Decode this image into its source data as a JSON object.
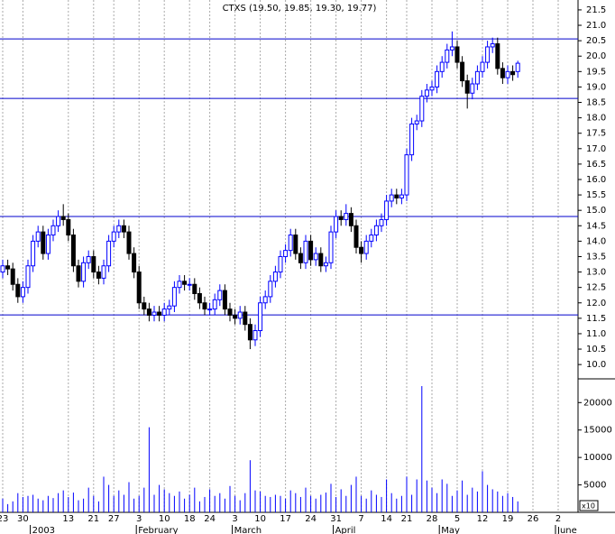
{
  "chart_data": [
    {
      "type": "candlestick",
      "title": "CTXS (19.50, 19.85, 19.30, 19.77)",
      "categories": [
        "23",
        null,
        null,
        null,
        "30",
        null,
        null,
        null,
        null,
        null,
        null,
        null,
        null,
        "13",
        null,
        null,
        null,
        null,
        "21",
        null,
        null,
        null,
        "27",
        null,
        null,
        null,
        null,
        "3",
        null,
        null,
        null,
        null,
        "10",
        null,
        null,
        null,
        null,
        "18",
        null,
        null,
        null,
        "24",
        null,
        null,
        null,
        null,
        "3",
        null,
        null,
        null,
        null,
        "10",
        null,
        null,
        null,
        null,
        "17",
        null,
        null,
        null,
        null,
        "24",
        null,
        null,
        null,
        null,
        "31",
        null,
        null,
        null,
        null,
        "7",
        null,
        null,
        null,
        null,
        "14",
        null,
        null,
        null,
        "21",
        null,
        null,
        null,
        null,
        "28",
        null,
        null,
        null,
        null,
        "5",
        null,
        null,
        null,
        null,
        "12",
        null,
        null,
        null,
        null,
        "19",
        null,
        null,
        null,
        null,
        "26",
        null,
        null,
        null,
        null,
        "2"
      ],
      "months": [
        "2003",
        "February",
        "March",
        "April",
        "May",
        "June"
      ],
      "open": [
        13.0,
        13.2,
        13.1,
        12.6,
        12.2,
        12.5,
        13.2,
        14.0,
        14.3,
        13.6,
        14.2,
        14.5,
        14.8,
        14.7,
        14.2,
        13.2,
        12.7,
        13.3,
        13.5,
        13.0,
        12.8,
        13.2,
        14.0,
        14.3,
        14.5,
        14.3,
        13.6,
        13.0,
        12.0,
        11.8,
        11.6,
        11.7,
        11.6,
        11.8,
        11.9,
        12.5,
        12.7,
        12.6,
        12.6,
        12.3,
        12.0,
        11.8,
        11.8,
        12.1,
        12.4,
        11.8,
        11.6,
        11.5,
        11.7,
        11.3,
        10.8,
        11.1,
        12.0,
        12.2,
        12.7,
        13.0,
        13.5,
        13.7,
        14.2,
        13.6,
        13.3,
        14.0,
        13.4,
        13.6,
        13.2,
        13.3,
        14.3,
        14.8,
        14.7,
        14.9,
        14.5,
        13.8,
        13.6,
        14.0,
        14.2,
        14.5,
        14.7,
        15.3,
        15.5,
        15.4,
        15.5,
        16.8,
        17.8,
        17.9,
        18.7,
        18.9,
        19.0,
        19.5,
        19.8,
        20.2,
        20.3,
        19.8,
        19.2,
        18.8,
        19.1,
        19.5,
        19.8,
        20.3,
        20.4,
        19.6,
        19.3,
        19.5,
        19.5,
        null,
        null,
        null,
        null,
        null,
        null,
        null,
        null
      ],
      "high": [
        13.4,
        13.4,
        13.3,
        12.8,
        12.7,
        13.4,
        14.2,
        14.5,
        14.5,
        14.4,
        14.7,
        15.0,
        15.2,
        14.9,
        14.4,
        13.4,
        13.5,
        13.7,
        13.7,
        13.2,
        13.4,
        14.2,
        14.5,
        14.7,
        14.7,
        14.5,
        13.8,
        13.2,
        12.2,
        12.0,
        11.9,
        11.9,
        12.0,
        12.1,
        12.7,
        12.9,
        12.9,
        12.8,
        12.8,
        12.5,
        12.2,
        12.0,
        12.3,
        12.6,
        12.6,
        12.0,
        11.8,
        11.9,
        11.9,
        11.5,
        11.3,
        12.2,
        12.4,
        12.9,
        13.2,
        13.7,
        13.9,
        14.4,
        14.4,
        13.8,
        14.2,
        14.2,
        13.8,
        13.8,
        13.5,
        14.5,
        15.0,
        15.0,
        15.2,
        15.1,
        14.7,
        14.0,
        14.2,
        14.4,
        14.7,
        14.9,
        15.5,
        15.7,
        15.7,
        15.7,
        17.0,
        18.0,
        18.1,
        18.9,
        19.1,
        19.2,
        19.7,
        20.0,
        20.4,
        20.8,
        20.5,
        20.0,
        19.4,
        19.3,
        19.7,
        20.0,
        20.5,
        20.6,
        20.6,
        19.8,
        19.7,
        19.7,
        19.85,
        null,
        null,
        null,
        null,
        null,
        null,
        null,
        null
      ],
      "low": [
        12.8,
        12.9,
        12.4,
        12.0,
        12.0,
        12.3,
        13.0,
        13.8,
        13.4,
        13.4,
        14.0,
        14.3,
        14.5,
        14.0,
        13.0,
        12.5,
        12.5,
        13.1,
        12.8,
        12.6,
        12.6,
        13.0,
        13.8,
        14.1,
        14.1,
        13.4,
        12.8,
        11.8,
        11.6,
        11.4,
        11.4,
        11.4,
        11.4,
        11.6,
        11.7,
        12.3,
        12.4,
        12.4,
        12.1,
        11.8,
        11.6,
        11.6,
        11.6,
        11.9,
        11.6,
        11.4,
        11.3,
        11.3,
        11.1,
        10.5,
        10.6,
        10.9,
        11.8,
        12.0,
        12.5,
        12.8,
        13.3,
        13.5,
        13.4,
        13.1,
        13.1,
        13.2,
        13.2,
        13.0,
        13.0,
        13.1,
        14.1,
        14.5,
        14.5,
        14.3,
        13.6,
        13.3,
        13.4,
        13.8,
        14.0,
        14.3,
        14.5,
        15.1,
        15.2,
        15.2,
        15.3,
        16.6,
        17.6,
        17.7,
        18.5,
        18.7,
        18.8,
        19.3,
        19.6,
        20.0,
        19.6,
        19.0,
        18.3,
        18.6,
        18.9,
        19.3,
        19.6,
        20.1,
        19.4,
        19.1,
        19.1,
        19.2,
        19.3,
        null,
        null,
        null,
        null,
        null,
        null,
        null,
        null
      ],
      "close": [
        13.2,
        13.1,
        12.6,
        12.2,
        12.5,
        13.2,
        14.0,
        14.3,
        13.6,
        14.2,
        14.5,
        14.8,
        14.7,
        14.2,
        13.2,
        12.7,
        13.3,
        13.5,
        13.0,
        12.8,
        13.2,
        14.0,
        14.3,
        14.5,
        14.3,
        13.6,
        13.0,
        12.0,
        11.8,
        11.6,
        11.7,
        11.6,
        11.8,
        11.9,
        12.5,
        12.7,
        12.6,
        12.6,
        12.3,
        12.0,
        11.8,
        11.8,
        12.1,
        12.4,
        11.8,
        11.6,
        11.5,
        11.7,
        11.3,
        10.8,
        11.1,
        12.0,
        12.2,
        12.7,
        13.0,
        13.5,
        13.7,
        14.2,
        13.6,
        13.3,
        14.0,
        13.4,
        13.6,
        13.2,
        13.3,
        14.3,
        14.8,
        14.7,
        14.9,
        14.5,
        13.8,
        13.6,
        14.0,
        14.2,
        14.5,
        14.7,
        15.3,
        15.5,
        15.4,
        15.5,
        16.8,
        17.8,
        17.9,
        18.7,
        18.9,
        19.0,
        19.5,
        19.8,
        20.2,
        20.3,
        19.8,
        19.2,
        18.8,
        19.1,
        19.5,
        19.8,
        20.3,
        20.4,
        19.6,
        19.3,
        19.5,
        19.4,
        19.77,
        null,
        null,
        null,
        null,
        null,
        null,
        null,
        null
      ],
      "up_color": "#0000ff",
      "down_color": "#000000",
      "ylim": [
        9.77,
        21.82
      ],
      "yticks": [
        {
          "value": 10,
          "label": "10.0"
        },
        10.5,
        {
          "value": 11,
          "label": "11.0"
        },
        11.5,
        {
          "value": 12,
          "label": "12.0"
        },
        12.5,
        {
          "value": 13,
          "label": "13.0"
        },
        13.5,
        {
          "value": 14,
          "label": "14.0"
        },
        14.5,
        {
          "value": 15,
          "label": "15.0"
        },
        15.5,
        {
          "value": 16,
          "label": "16.0"
        },
        16.5,
        {
          "value": 17,
          "label": "17.0"
        },
        17.5,
        {
          "value": 18,
          "label": "18.0"
        },
        18.5,
        {
          "value": 19,
          "label": "19.0"
        },
        19.5,
        {
          "value": 20,
          "label": "20.0"
        },
        20.5,
        {
          "value": 21,
          "label": "21.0"
        },
        21.5
      ],
      "hlines": [
        20.56,
        18.63,
        14.8,
        11.61
      ],
      "hline_color": "#0000cc",
      "grid": true
    },
    {
      "type": "bar",
      "y_label": "x10",
      "color": "#0000ff",
      "values": [
        2500,
        1500,
        2000,
        3500,
        2800,
        3000,
        3200,
        2500,
        2200,
        3000,
        2600,
        3500,
        4000,
        2800,
        3600,
        2200,
        2500,
        4500,
        3000,
        2000,
        6500,
        5000,
        3000,
        4000,
        3200,
        5500,
        2500,
        3000,
        4500,
        15500,
        3200,
        5000,
        4200,
        3500,
        3000,
        3800,
        2500,
        3200,
        4500,
        2000,
        2800,
        4200,
        3000,
        3500,
        2500,
        4800,
        3000,
        2200,
        3500,
        9500,
        4000,
        3800,
        3000,
        2800,
        3200,
        3000,
        2500,
        4000,
        3500,
        2800,
        4500,
        3000,
        2500,
        3200,
        3600,
        5200,
        2800,
        4200,
        3000,
        5000,
        6500,
        3000,
        2500,
        4000,
        3200,
        2800,
        6000,
        3500,
        2500,
        3000,
        6500,
        3200,
        6000,
        23000,
        5800,
        4500,
        3500,
        6000,
        5200,
        3000,
        4000,
        5800,
        3200,
        4500,
        3800,
        7500,
        5000,
        4200,
        3800,
        3000,
        3500,
        2800,
        2000,
        null,
        null,
        null,
        null,
        null,
        null,
        null,
        null
      ],
      "ylim": [
        0,
        23500
      ],
      "yticks": [
        5000,
        10000,
        15000,
        20000
      ]
    }
  ]
}
